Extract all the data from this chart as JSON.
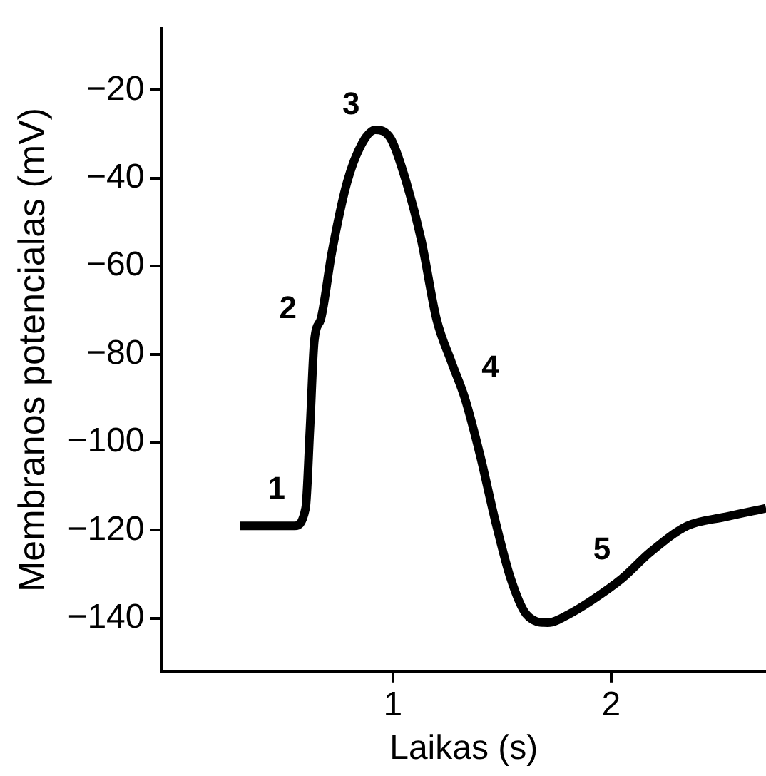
{
  "chart_data": {
    "type": "line",
    "xlabel": "Laikas (s)",
    "ylabel": "Membranos potencialas (mV)",
    "xlim": [
      -0.06,
      2.71
    ],
    "ylim": [
      -152,
      -6
    ],
    "xticks": [
      1,
      2
    ],
    "yticks": [
      {
        "value": -20,
        "label": "−20"
      },
      {
        "value": -40,
        "label": "−40"
      },
      {
        "value": -60,
        "label": "−60"
      },
      {
        "value": -80,
        "label": "−80"
      },
      {
        "value": -100,
        "label": "−100"
      },
      {
        "value": -120,
        "label": "−120"
      },
      {
        "value": -140,
        "label": "−140"
      }
    ],
    "grid": false,
    "legend": false,
    "marker": "none",
    "line_style": "solid",
    "series": [
      {
        "color": "#000000",
        "x": [
          0.3,
          0.55,
          0.6,
          0.62,
          0.64,
          0.67,
          0.72,
          0.79,
          0.86,
          0.92,
          0.99,
          1.05,
          1.13,
          1.2,
          1.27,
          1.33,
          1.4,
          1.47,
          1.54,
          1.61,
          1.71,
          1.81,
          1.91,
          2.05,
          2.18,
          2.35,
          2.52,
          2.71
        ],
        "values": [
          -119,
          -119,
          -115,
          -97,
          -77,
          -72,
          -57,
          -41,
          -32,
          -29,
          -31,
          -39,
          -54,
          -72,
          -82,
          -90,
          -103,
          -118,
          -131,
          -139,
          -141,
          -139,
          -136,
          -131,
          -125,
          -119,
          -117,
          -115
        ]
      }
    ],
    "annotations": [
      {
        "text": "1",
        "x": 0.6,
        "y": -115
      },
      {
        "text": "2",
        "x": 0.67,
        "y": -72
      },
      {
        "text": "3",
        "x": 0.92,
        "y": -29
      },
      {
        "text": "4",
        "x": 1.3,
        "y": -86
      },
      {
        "text": "5",
        "x": 2.05,
        "y": -131
      }
    ]
  }
}
